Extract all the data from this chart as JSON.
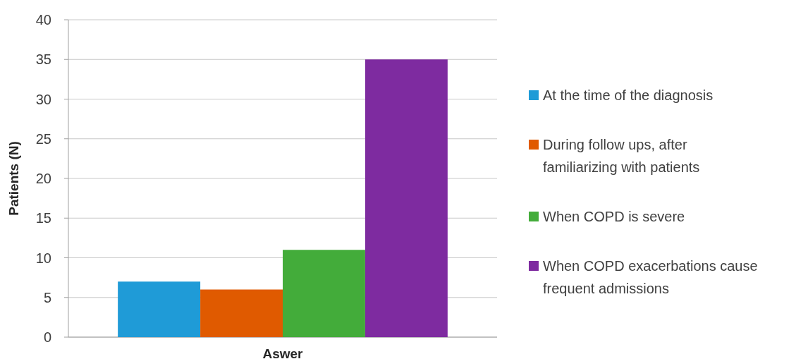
{
  "chart_data": {
    "type": "bar",
    "xlabel": "Aswer",
    "ylabel": "Patients (N)",
    "categories": [
      null
    ],
    "series": [
      {
        "name": "At the time of the diagnosis",
        "color": "#1f9bd7",
        "values": [
          7
        ]
      },
      {
        "name": "During follow ups, after familiarizing with patients",
        "color": "#e05a00",
        "values": [
          6
        ]
      },
      {
        "name": "When COPD is severe",
        "color": "#43ac3a",
        "values": [
          11
        ]
      },
      {
        "name": "When COPD exacerbations cause frequent admissions",
        "color": "#7e2ba0",
        "values": [
          35
        ]
      }
    ],
    "ylim": [
      0,
      40
    ],
    "yticks": [
      0,
      5,
      10,
      15,
      20,
      25,
      30,
      35,
      40
    ],
    "grid": "y",
    "legend": "right"
  }
}
